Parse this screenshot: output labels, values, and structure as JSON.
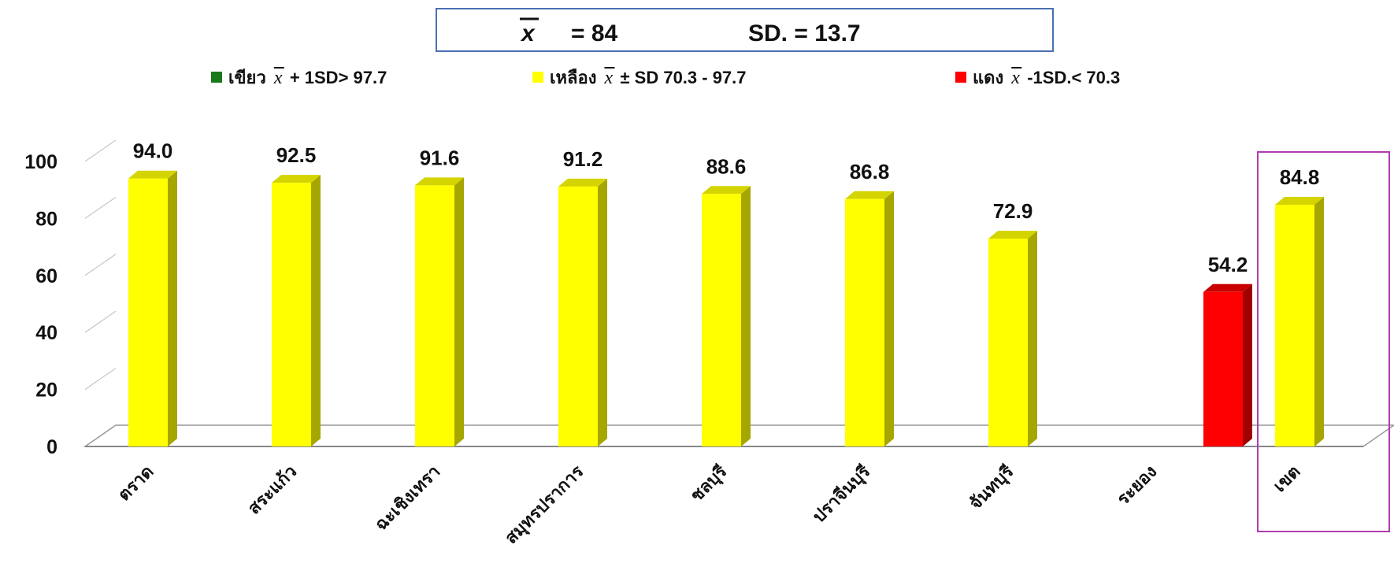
{
  "header": {
    "mean_symbol": "x",
    "mean_text": "=  84",
    "sd_text": "SD.  =  13.7"
  },
  "legend": {
    "items": [
      {
        "color": "#1a7a1a",
        "label_before": "เขียว",
        "label_after": "+ 1SD> 97.7"
      },
      {
        "color": "#ffff00",
        "label_before": "เหลือง",
        "label_after": "± SD 70.3 - 97.7"
      },
      {
        "color": "#ff0000",
        "label_before": "แดง",
        "label_after": "-1SD.< 70.3"
      }
    ]
  },
  "colors": {
    "yellow_front": "#ffff00",
    "yellow_side": "#a6a600",
    "yellow_top": "#d4d400",
    "red_front": "#ff0000",
    "red_side": "#a00000",
    "red_top": "#c80000",
    "highlight_border": "#b03cb0",
    "box_border": "#4a6fb5"
  },
  "chart_data": {
    "type": "bar",
    "categories": [
      "ตราด",
      "สระแก้ว",
      "ฉะเชิงเทรา",
      "สมุทรปราการ",
      "ชลบุรี",
      "ปราจีนบุรี",
      "จันทบุรี",
      "ระยอง",
      "เขต"
    ],
    "values": [
      94.0,
      92.5,
      91.6,
      91.2,
      88.6,
      86.8,
      72.9,
      54.2,
      84.8
    ],
    "value_labels": [
      "94.0",
      "92.5",
      "91.6",
      "91.2",
      "88.6",
      "86.8",
      "72.9",
      "54.2",
      "84.8"
    ],
    "bar_colors": [
      "yellow",
      "yellow",
      "yellow",
      "yellow",
      "yellow",
      "yellow",
      "yellow",
      "red",
      "yellow"
    ],
    "bar_slot": [
      0,
      1,
      2,
      3,
      4,
      5,
      6,
      7.5,
      8
    ],
    "yticks": [
      "0",
      "20",
      "40",
      "60",
      "80",
      "100"
    ],
    "ytick_values": [
      0,
      20,
      40,
      60,
      80,
      100
    ],
    "ylim": [
      0,
      100
    ],
    "highlighted_category": "เขต",
    "title": "",
    "xlabel": "",
    "ylabel": ""
  }
}
